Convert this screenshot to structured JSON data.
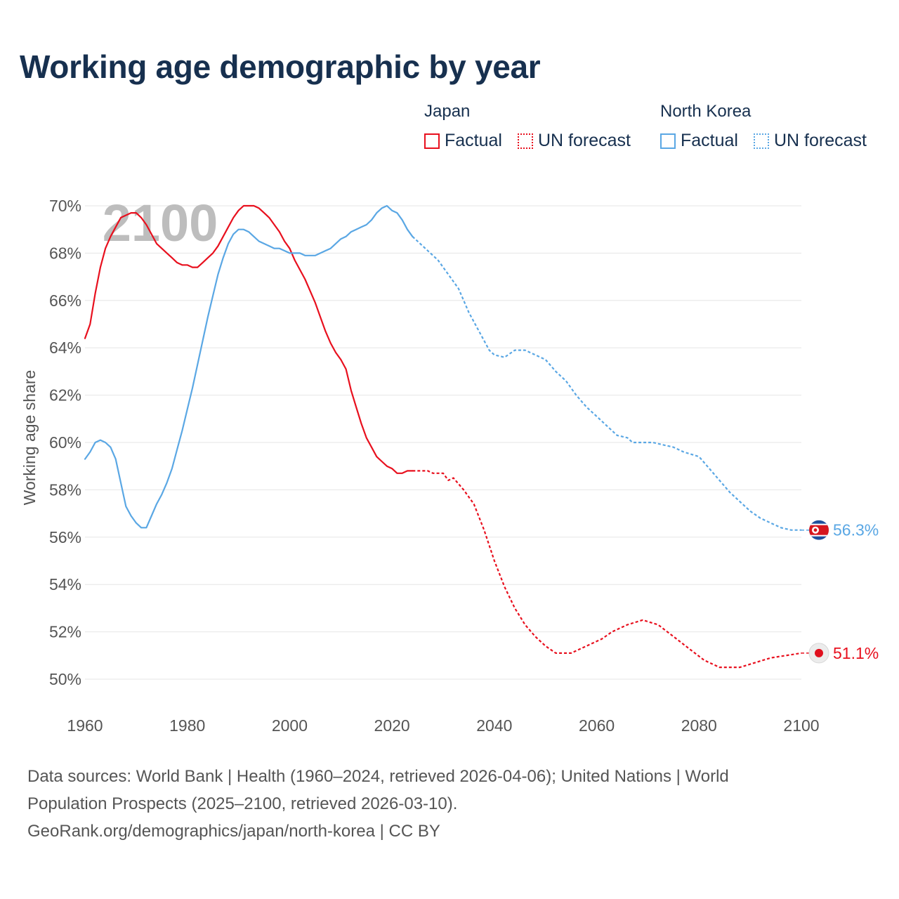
{
  "title": "Working age demographic by year",
  "legend": {
    "groups": [
      {
        "name": "Japan",
        "factual_label": "Factual",
        "forecast_label": "UN forecast",
        "color": "#e8101e"
      },
      {
        "name": "North Korea",
        "factual_label": "Factual",
        "forecast_label": "UN forecast",
        "color": "#5aa7e4"
      }
    ]
  },
  "year_watermark": "2100",
  "source": {
    "line1": "Data sources: World Bank | Health (1960–2024, retrieved 2026-04-06); United Nations | World",
    "line2": "Population Prospects (2025–2100, retrieved 2026-03-10).",
    "line3": "GeoRank.org/demographics/japan/north-korea | CC BY"
  },
  "chart_data": {
    "type": "line",
    "title": "Working age demographic by year",
    "xlabel": "",
    "ylabel": "Working age share",
    "xlim": [
      1960,
      2100
    ],
    "ylim": [
      50,
      70
    ],
    "x_ticks": [
      1960,
      1980,
      2000,
      2020,
      2040,
      2060,
      2080,
      2100
    ],
    "x_tick_labels": [
      "1960",
      "1980",
      "2000",
      "2020",
      "2040",
      "2060",
      "2080",
      "2100"
    ],
    "y_ticks": [
      50,
      52,
      54,
      56,
      58,
      60,
      62,
      64,
      66,
      68,
      70
    ],
    "y_tick_labels": [
      "50%",
      "52%",
      "54%",
      "56%",
      "58%",
      "60%",
      "62%",
      "64%",
      "66%",
      "68%",
      "70%"
    ],
    "grid": true,
    "factual_end_year": 2024,
    "series": [
      {
        "name": "Japan",
        "color": "#e8101e",
        "end_label": "51.1%",
        "end_marker": "japan-flag",
        "points": [
          [
            1960,
            64.4
          ],
          [
            1961,
            65.0
          ],
          [
            1962,
            66.3
          ],
          [
            1963,
            67.4
          ],
          [
            1964,
            68.2
          ],
          [
            1965,
            68.7
          ],
          [
            1966,
            69.1
          ],
          [
            1967,
            69.5
          ],
          [
            1968,
            69.6
          ],
          [
            1969,
            69.7
          ],
          [
            1970,
            69.7
          ],
          [
            1971,
            69.5
          ],
          [
            1972,
            69.2
          ],
          [
            1973,
            68.8
          ],
          [
            1974,
            68.4
          ],
          [
            1975,
            68.2
          ],
          [
            1976,
            68.0
          ],
          [
            1977,
            67.8
          ],
          [
            1978,
            67.6
          ],
          [
            1979,
            67.5
          ],
          [
            1980,
            67.5
          ],
          [
            1981,
            67.4
          ],
          [
            1982,
            67.4
          ],
          [
            1983,
            67.6
          ],
          [
            1984,
            67.8
          ],
          [
            1985,
            68.0
          ],
          [
            1986,
            68.3
          ],
          [
            1987,
            68.7
          ],
          [
            1988,
            69.1
          ],
          [
            1989,
            69.5
          ],
          [
            1990,
            69.8
          ],
          [
            1991,
            70.0
          ],
          [
            1992,
            70.0
          ],
          [
            1993,
            70.0
          ],
          [
            1994,
            69.9
          ],
          [
            1995,
            69.7
          ],
          [
            1996,
            69.5
          ],
          [
            1997,
            69.2
          ],
          [
            1998,
            68.9
          ],
          [
            1999,
            68.5
          ],
          [
            2000,
            68.2
          ],
          [
            2001,
            67.7
          ],
          [
            2002,
            67.3
          ],
          [
            2003,
            66.9
          ],
          [
            2004,
            66.4
          ],
          [
            2005,
            65.9
          ],
          [
            2006,
            65.3
          ],
          [
            2007,
            64.7
          ],
          [
            2008,
            64.2
          ],
          [
            2009,
            63.8
          ],
          [
            2010,
            63.5
          ],
          [
            2011,
            63.1
          ],
          [
            2012,
            62.2
          ],
          [
            2013,
            61.5
          ],
          [
            2014,
            60.8
          ],
          [
            2015,
            60.2
          ],
          [
            2016,
            59.8
          ],
          [
            2017,
            59.4
          ],
          [
            2018,
            59.2
          ],
          [
            2019,
            59.0
          ],
          [
            2020,
            58.9
          ],
          [
            2021,
            58.7
          ],
          [
            2022,
            58.7
          ],
          [
            2023,
            58.8
          ],
          [
            2024,
            58.8
          ],
          [
            2025,
            58.8
          ],
          [
            2027,
            58.8
          ],
          [
            2028,
            58.7
          ],
          [
            2030,
            58.7
          ],
          [
            2031,
            58.4
          ],
          [
            2032,
            58.5
          ],
          [
            2034,
            58.0
          ],
          [
            2036,
            57.4
          ],
          [
            2038,
            56.3
          ],
          [
            2040,
            55.0
          ],
          [
            2042,
            53.9
          ],
          [
            2044,
            53.0
          ],
          [
            2046,
            52.3
          ],
          [
            2048,
            51.8
          ],
          [
            2050,
            51.4
          ],
          [
            2052,
            51.1
          ],
          [
            2055,
            51.1
          ],
          [
            2058,
            51.4
          ],
          [
            2061,
            51.7
          ],
          [
            2063,
            52.0
          ],
          [
            2066,
            52.3
          ],
          [
            2069,
            52.5
          ],
          [
            2072,
            52.3
          ],
          [
            2075,
            51.8
          ],
          [
            2078,
            51.3
          ],
          [
            2081,
            50.8
          ],
          [
            2084,
            50.5
          ],
          [
            2088,
            50.5
          ],
          [
            2091,
            50.7
          ],
          [
            2094,
            50.9
          ],
          [
            2097,
            51.0
          ],
          [
            2100,
            51.1
          ]
        ]
      },
      {
        "name": "North Korea",
        "color": "#5aa7e4",
        "end_label": "56.3%",
        "end_marker": "north-korea-flag",
        "points": [
          [
            1960,
            59.3
          ],
          [
            1961,
            59.6
          ],
          [
            1962,
            60.0
          ],
          [
            1963,
            60.1
          ],
          [
            1964,
            60.0
          ],
          [
            1965,
            59.8
          ],
          [
            1966,
            59.3
          ],
          [
            1967,
            58.3
          ],
          [
            1968,
            57.3
          ],
          [
            1969,
            56.9
          ],
          [
            1970,
            56.6
          ],
          [
            1971,
            56.4
          ],
          [
            1972,
            56.4
          ],
          [
            1973,
            56.9
          ],
          [
            1974,
            57.4
          ],
          [
            1975,
            57.8
          ],
          [
            1976,
            58.3
          ],
          [
            1977,
            58.9
          ],
          [
            1978,
            59.7
          ],
          [
            1979,
            60.5
          ],
          [
            1980,
            61.4
          ],
          [
            1981,
            62.3
          ],
          [
            1982,
            63.3
          ],
          [
            1983,
            64.3
          ],
          [
            1984,
            65.3
          ],
          [
            1985,
            66.2
          ],
          [
            1986,
            67.1
          ],
          [
            1987,
            67.8
          ],
          [
            1988,
            68.4
          ],
          [
            1989,
            68.8
          ],
          [
            1990,
            69.0
          ],
          [
            1991,
            69.0
          ],
          [
            1992,
            68.9
          ],
          [
            1993,
            68.7
          ],
          [
            1994,
            68.5
          ],
          [
            1995,
            68.4
          ],
          [
            1996,
            68.3
          ],
          [
            1997,
            68.2
          ],
          [
            1998,
            68.2
          ],
          [
            1999,
            68.1
          ],
          [
            2000,
            68.0
          ],
          [
            2002,
            68.0
          ],
          [
            2003,
            67.9
          ],
          [
            2005,
            67.9
          ],
          [
            2007,
            68.1
          ],
          [
            2008,
            68.2
          ],
          [
            2009,
            68.4
          ],
          [
            2010,
            68.6
          ],
          [
            2011,
            68.7
          ],
          [
            2012,
            68.9
          ],
          [
            2013,
            69.0
          ],
          [
            2014,
            69.1
          ],
          [
            2015,
            69.2
          ],
          [
            2016,
            69.4
          ],
          [
            2017,
            69.7
          ],
          [
            2018,
            69.9
          ],
          [
            2019,
            70.0
          ],
          [
            2020,
            69.8
          ],
          [
            2021,
            69.7
          ],
          [
            2022,
            69.4
          ],
          [
            2023,
            69.0
          ],
          [
            2024,
            68.7
          ],
          [
            2025,
            68.5
          ],
          [
            2027,
            68.1
          ],
          [
            2029,
            67.7
          ],
          [
            2031,
            67.1
          ],
          [
            2033,
            66.5
          ],
          [
            2035,
            65.5
          ],
          [
            2037,
            64.7
          ],
          [
            2039,
            63.9
          ],
          [
            2040,
            63.7
          ],
          [
            2042,
            63.6
          ],
          [
            2044,
            63.9
          ],
          [
            2046,
            63.9
          ],
          [
            2048,
            63.7
          ],
          [
            2050,
            63.5
          ],
          [
            2052,
            63.0
          ],
          [
            2054,
            62.6
          ],
          [
            2056,
            62.0
          ],
          [
            2058,
            61.5
          ],
          [
            2060,
            61.1
          ],
          [
            2062,
            60.7
          ],
          [
            2064,
            60.3
          ],
          [
            2066,
            60.2
          ],
          [
            2067,
            60.0
          ],
          [
            2071,
            60.0
          ],
          [
            2073,
            59.9
          ],
          [
            2075,
            59.8
          ],
          [
            2077,
            59.6
          ],
          [
            2080,
            59.4
          ],
          [
            2082,
            58.9
          ],
          [
            2084,
            58.4
          ],
          [
            2086,
            57.9
          ],
          [
            2088,
            57.5
          ],
          [
            2090,
            57.1
          ],
          [
            2092,
            56.8
          ],
          [
            2094,
            56.6
          ],
          [
            2096,
            56.4
          ],
          [
            2098,
            56.3
          ],
          [
            2100,
            56.3
          ]
        ]
      }
    ]
  }
}
